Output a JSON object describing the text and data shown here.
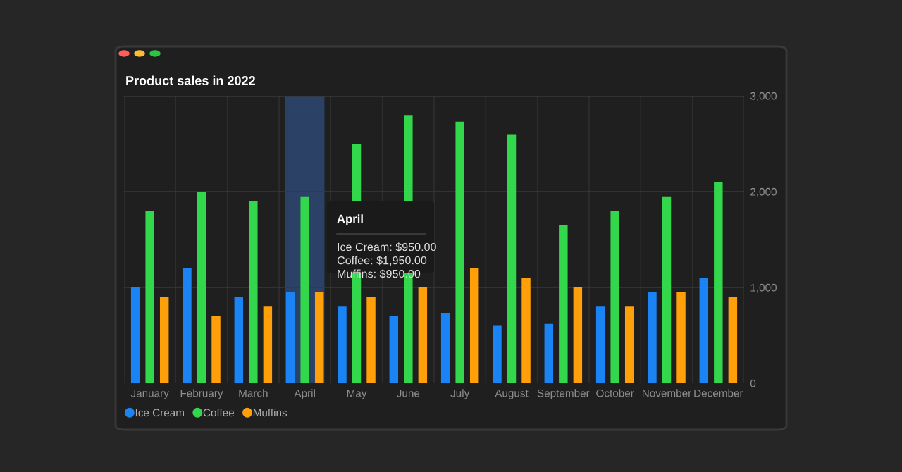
{
  "chart_data": {
    "type": "bar",
    "title": "Product sales in 2022",
    "categories": [
      "January",
      "February",
      "March",
      "April",
      "May",
      "June",
      "July",
      "August",
      "September",
      "October",
      "November",
      "December"
    ],
    "series": [
      {
        "name": "Ice Cream",
        "color": "#1a84f5",
        "values": [
          1000,
          1200,
          900,
          950,
          800,
          700,
          730,
          600,
          620,
          800,
          950,
          1100
        ]
      },
      {
        "name": "Coffee",
        "color": "#32d74b",
        "values": [
          1800,
          2000,
          1900,
          1950,
          2500,
          2800,
          2730,
          2600,
          1650,
          1800,
          1950,
          2100
        ]
      },
      {
        "name": "Muffins",
        "color": "#ff9f0a",
        "values": [
          900,
          700,
          800,
          950,
          900,
          1000,
          1200,
          1100,
          1000,
          800,
          950,
          900
        ]
      }
    ],
    "ylim": [
      0,
      3000
    ],
    "yticks": [
      0,
      {
        "value": 1000,
        "label": "1,000"
      },
      {
        "value": 2000,
        "label": "2,000"
      },
      {
        "value": 3000,
        "label": "3,000"
      }
    ],
    "grid": true,
    "legend": "bottom left",
    "bands": [
      {
        "axis": "x",
        "from": "April",
        "to": "April",
        "color": "#2b4266"
      }
    ],
    "annotations": [
      "April",
      "Ice Cream: $950.00",
      "Coffee: $1,950.00",
      "Muffins: $950.00"
    ]
  }
}
